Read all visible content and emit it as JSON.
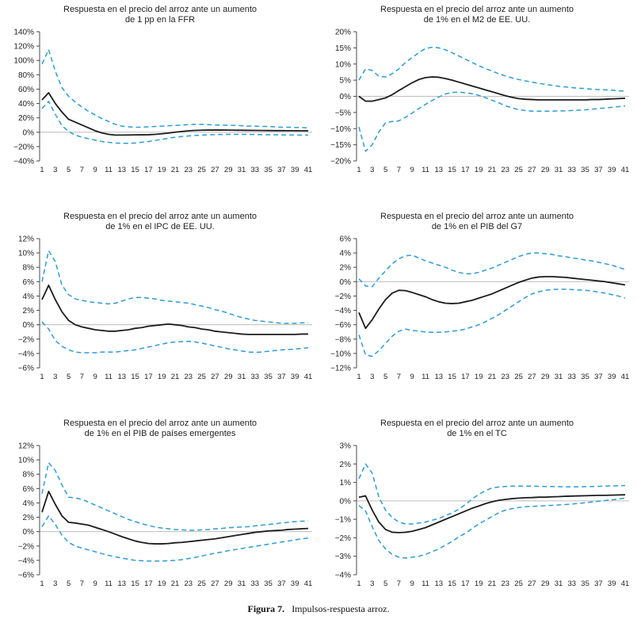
{
  "caption": {
    "label": "Figura 7.",
    "text": "Impulsos-respuesta arroz."
  },
  "style": {
    "band_color": "#2e9bd6",
    "line_color": "#1c1c1c",
    "zero_line_color": "#bdbdbd",
    "axis_color": "#4a4a4a",
    "text_color": "#1f1f1f"
  },
  "x_axis": {
    "min": 1,
    "max": 41,
    "tick_labels": [
      "1",
      "3",
      "5",
      "7",
      "9",
      "11",
      "13",
      "15",
      "17",
      "19",
      "21",
      "23",
      "25",
      "27",
      "29",
      "31",
      "33",
      "35",
      "37",
      "39",
      "41"
    ]
  },
  "chart_data": [
    {
      "type": "line",
      "title_lines": [
        "Respuesta en el precio del arroz ante un aumento",
        "de 1 pp en la FFR"
      ],
      "ylim": [
        -40,
        140
      ],
      "ytick_step": 20,
      "y_tick_labels": [
        "140%",
        "120%",
        "100%",
        "80%",
        "60%",
        "40%",
        "20%",
        "0%",
        "−20%",
        "−40%"
      ],
      "series": [
        {
          "name": "respuesta",
          "style": "solid",
          "values": [
            45,
            55,
            40,
            28,
            18,
            14,
            10,
            6,
            2,
            -1,
            -3,
            -4,
            -4,
            -3.8,
            -3.7,
            -3.6,
            -3.5,
            -3,
            -2.2,
            -1.2,
            0,
            1,
            2,
            2.5,
            2.8,
            3,
            3,
            3,
            2.9,
            2.8,
            2.7,
            2.6,
            2.5,
            2.4,
            2.3,
            2.2,
            2.2,
            2.1,
            2.1,
            2,
            2
          ]
        },
        {
          "name": "banda-superior",
          "style": "dashed",
          "values": [
            95,
            115,
            85,
            62,
            50,
            42,
            35,
            29,
            24,
            19,
            15,
            11,
            8.5,
            7.5,
            7,
            7,
            7.5,
            8,
            8.5,
            9,
            9.5,
            10,
            10.5,
            11,
            11,
            10.5,
            10,
            10,
            9.5,
            9.5,
            9,
            8.5,
            8.5,
            8,
            8,
            7.5,
            7,
            7,
            6.5,
            6.5,
            6
          ]
        },
        {
          "name": "banda-inferior",
          "style": "dashed",
          "values": [
            33,
            43,
            25,
            9,
            1,
            -4,
            -7,
            -9,
            -11,
            -13,
            -14,
            -15,
            -15.5,
            -15.5,
            -15,
            -14,
            -13,
            -11.5,
            -10,
            -8.5,
            -7,
            -6,
            -5.2,
            -4.5,
            -4,
            -3.6,
            -3.3,
            -3.1,
            -3,
            -3,
            -3,
            -3.1,
            -3.2,
            -3.4,
            -3.5,
            -3.6,
            -3.7,
            -3.8,
            -3.9,
            -4,
            -4
          ]
        }
      ]
    },
    {
      "type": "line",
      "title_lines": [
        "Respuesta en el precio del arroz ante un aumento",
        "de 1% en el M2 de EE. UU."
      ],
      "ylim": [
        -20,
        20
      ],
      "ytick_step": 5,
      "y_tick_labels": [
        "20%",
        "15%",
        "10%",
        "5%",
        "0%",
        "−5%",
        "−10%",
        "−15%",
        "−20%"
      ],
      "series": [
        {
          "name": "respuesta",
          "style": "solid",
          "values": [
            0,
            -1.5,
            -1.5,
            -1,
            -0.5,
            0.5,
            1.8,
            3,
            4.2,
            5.2,
            5.8,
            6,
            5.9,
            5.5,
            5,
            4.4,
            3.8,
            3.2,
            2.6,
            2,
            1.4,
            0.8,
            0.2,
            -0.3,
            -0.7,
            -0.9,
            -1,
            -1.1,
            -1.1,
            -1.1,
            -1.1,
            -1.1,
            -1.1,
            -1.1,
            -1.1,
            -1,
            -1,
            -0.9,
            -0.8,
            -0.7,
            -0.6
          ]
        },
        {
          "name": "banda-superior",
          "style": "dashed",
          "values": [
            5,
            8.5,
            8,
            6.2,
            6,
            7,
            8.5,
            10.5,
            12,
            13.5,
            14.8,
            15.2,
            15,
            14.4,
            13.5,
            12.5,
            11.5,
            10.5,
            9.5,
            8.6,
            7.8,
            7,
            6.3,
            5.7,
            5.2,
            4.8,
            4.4,
            4,
            3.7,
            3.4,
            3.1,
            2.9,
            2.7,
            2.5,
            2.4,
            2.2,
            2.1,
            2,
            1.9,
            1.7,
            1.6
          ]
        },
        {
          "name": "banda-inferior",
          "style": "dashed",
          "values": [
            -9.5,
            -17,
            -15,
            -11,
            -8.2,
            -7.8,
            -7.6,
            -6.5,
            -5.2,
            -3.8,
            -2.5,
            -1.3,
            -0.2,
            0.7,
            1.2,
            1.3,
            1.1,
            0.8,
            0.3,
            -0.4,
            -1.2,
            -2,
            -2.9,
            -3.6,
            -4.1,
            -4.4,
            -4.6,
            -4.6,
            -4.6,
            -4.6,
            -4.5,
            -4.5,
            -4.4,
            -4.3,
            -4.2,
            -4,
            -3.8,
            -3.6,
            -3.4,
            -3.2,
            -3
          ]
        }
      ]
    },
    {
      "type": "line",
      "title_lines": [
        "Respuesta en el precio del arroz ante un aumento",
        "de 1% en el IPC de EE. UU."
      ],
      "ylim": [
        -6,
        12
      ],
      "ytick_step": 2,
      "y_tick_labels": [
        "12%",
        "10%",
        "8%",
        "6%",
        "4%",
        "2%",
        "0%",
        "−2%",
        "−4%",
        "−6%"
      ],
      "series": [
        {
          "name": "respuesta",
          "style": "solid",
          "values": [
            3.5,
            5.5,
            3.5,
            1.8,
            0.6,
            0,
            -0.3,
            -0.5,
            -0.7,
            -0.8,
            -0.9,
            -0.9,
            -0.8,
            -0.7,
            -0.5,
            -0.4,
            -0.2,
            -0.1,
            0,
            0.1,
            0,
            -0.1,
            -0.3,
            -0.4,
            -0.6,
            -0.7,
            -0.9,
            -1,
            -1.1,
            -1.2,
            -1.3,
            -1.35,
            -1.35,
            -1.35,
            -1.35,
            -1.35,
            -1.35,
            -1.35,
            -1.35,
            -1.3,
            -1.3
          ]
        },
        {
          "name": "banda-superior",
          "style": "dashed",
          "values": [
            6,
            10.3,
            8.8,
            5.5,
            4.2,
            3.6,
            3.4,
            3.2,
            3.1,
            3,
            2.9,
            3,
            3.3,
            3.6,
            3.8,
            3.8,
            3.7,
            3.6,
            3.4,
            3.3,
            3.2,
            3.1,
            3,
            2.8,
            2.6,
            2.4,
            2.1,
            1.9,
            1.6,
            1.3,
            1,
            0.8,
            0.6,
            0.5,
            0.4,
            0.3,
            0.2,
            0.2,
            0.2,
            0.25,
            0.3
          ]
        },
        {
          "name": "banda-inferior",
          "style": "dashed",
          "values": [
            0.4,
            -0.6,
            -2.2,
            -3,
            -3.5,
            -3.8,
            -3.9,
            -3.9,
            -3.9,
            -3.8,
            -3.8,
            -3.8,
            -3.7,
            -3.6,
            -3.5,
            -3.3,
            -3.1,
            -2.9,
            -2.7,
            -2.5,
            -2.4,
            -2.35,
            -2.3,
            -2.4,
            -2.55,
            -2.75,
            -2.95,
            -3.15,
            -3.35,
            -3.5,
            -3.65,
            -3.8,
            -3.85,
            -3.8,
            -3.7,
            -3.6,
            -3.5,
            -3.45,
            -3.4,
            -3.3,
            -3.2
          ]
        }
      ]
    },
    {
      "type": "line",
      "title_lines": [
        "Respuesta en el precio del arroz ante un aumento",
        "de 1% en el PIB del G7"
      ],
      "ylim": [
        -12,
        6
      ],
      "ytick_step": 2,
      "y_tick_labels": [
        "6%",
        "4%",
        "2%",
        "0%",
        "−2%",
        "−4%",
        "−6%",
        "−8%",
        "−10%",
        "−12%"
      ],
      "series": [
        {
          "name": "respuesta",
          "style": "solid",
          "values": [
            -4.3,
            -6.5,
            -5.3,
            -3.8,
            -2.5,
            -1.6,
            -1.2,
            -1.25,
            -1.5,
            -1.8,
            -2.1,
            -2.5,
            -2.8,
            -3,
            -3.05,
            -3,
            -2.8,
            -2.6,
            -2.3,
            -2,
            -1.7,
            -1.3,
            -0.9,
            -0.5,
            -0.1,
            0.2,
            0.5,
            0.65,
            0.7,
            0.7,
            0.65,
            0.6,
            0.5,
            0.4,
            0.3,
            0.2,
            0.1,
            0,
            -0.15,
            -0.3,
            -0.45
          ]
        },
        {
          "name": "banda-superior",
          "style": "dashed",
          "values": [
            0.4,
            -0.6,
            -0.7,
            0.5,
            1.5,
            2.5,
            3.2,
            3.6,
            3.7,
            3.3,
            2.9,
            2.6,
            2.3,
            2,
            1.6,
            1.3,
            1.1,
            1.1,
            1.3,
            1.6,
            1.9,
            2.3,
            2.7,
            3.1,
            3.5,
            3.8,
            4,
            4,
            3.9,
            3.8,
            3.6,
            3.5,
            3.3,
            3.2,
            3,
            2.9,
            2.7,
            2.5,
            2.3,
            2,
            1.7
          ]
        },
        {
          "name": "banda-inferior",
          "style": "dashed",
          "values": [
            -7.4,
            -10.2,
            -10.4,
            -9.6,
            -8.6,
            -7.6,
            -6.9,
            -6.6,
            -6.8,
            -6.9,
            -7,
            -7.05,
            -7.05,
            -7,
            -6.9,
            -6.8,
            -6.6,
            -6.3,
            -6,
            -5.6,
            -5.1,
            -4.6,
            -4,
            -3.4,
            -2.8,
            -2.2,
            -1.7,
            -1.4,
            -1.2,
            -1.1,
            -1.05,
            -1.05,
            -1.1,
            -1.15,
            -1.2,
            -1.3,
            -1.45,
            -1.6,
            -1.8,
            -2,
            -2.3
          ]
        }
      ]
    },
    {
      "type": "line",
      "title_lines": [
        "Respuesta en el precio del arroz ante un aumento",
        "de 1% en el PIB de países emergentes"
      ],
      "ylim": [
        -6,
        12
      ],
      "ytick_step": 2,
      "y_tick_labels": [
        "12%",
        "10%",
        "8%",
        "6%",
        "4%",
        "2%",
        "0%",
        "−2%",
        "−4%",
        "−6%"
      ],
      "series": [
        {
          "name": "respuesta",
          "style": "solid",
          "values": [
            2.7,
            5.6,
            3.8,
            2.2,
            1.3,
            1.2,
            1.05,
            0.9,
            0.6,
            0.3,
            0,
            -0.35,
            -0.7,
            -1,
            -1.3,
            -1.5,
            -1.65,
            -1.7,
            -1.7,
            -1.65,
            -1.55,
            -1.5,
            -1.4,
            -1.3,
            -1.2,
            -1.1,
            -1,
            -0.85,
            -0.7,
            -0.55,
            -0.4,
            -0.25,
            -0.1,
            0,
            0.1,
            0.15,
            0.2,
            0.3,
            0.35,
            0.4,
            0.45
          ]
        },
        {
          "name": "banda-superior",
          "style": "dashed",
          "values": [
            5.3,
            9.6,
            8.5,
            6.5,
            4.8,
            4.7,
            4.5,
            4.1,
            3.7,
            3.3,
            2.9,
            2.5,
            2.1,
            1.7,
            1.4,
            1.1,
            0.85,
            0.65,
            0.5,
            0.4,
            0.3,
            0.25,
            0.2,
            0.2,
            0.25,
            0.3,
            0.4,
            0.45,
            0.55,
            0.6,
            0.65,
            0.7,
            0.8,
            0.9,
            1,
            1.1,
            1.2,
            1.3,
            1.4,
            1.45,
            1.5
          ]
        },
        {
          "name": "banda-inferior",
          "style": "dashed",
          "values": [
            0.7,
            2.2,
            1,
            -0.5,
            -1.5,
            -2,
            -2.3,
            -2.55,
            -2.8,
            -3.05,
            -3.3,
            -3.5,
            -3.7,
            -3.85,
            -4,
            -4.05,
            -4.1,
            -4.1,
            -4.1,
            -4.05,
            -4,
            -3.9,
            -3.75,
            -3.6,
            -3.4,
            -3.2,
            -3,
            -2.85,
            -2.65,
            -2.5,
            -2.35,
            -2.2,
            -2.05,
            -1.9,
            -1.75,
            -1.6,
            -1.45,
            -1.3,
            -1.15,
            -1,
            -0.9
          ]
        }
      ]
    },
    {
      "type": "line",
      "title_lines": [
        "Respuesta en el precio del arroz ante un aumento",
        "de 1% en el TC"
      ],
      "ylim": [
        -4,
        3
      ],
      "ytick_step": 1,
      "y_tick_labels": [
        "3%",
        "2%",
        "1%",
        "0%",
        "−1%",
        "−2%",
        "−3%",
        "−4%"
      ],
      "series": [
        {
          "name": "respuesta",
          "style": "solid",
          "values": [
            0.2,
            0.27,
            -0.5,
            -1.15,
            -1.55,
            -1.7,
            -1.72,
            -1.7,
            -1.65,
            -1.55,
            -1.45,
            -1.3,
            -1.15,
            -1,
            -0.85,
            -0.7,
            -0.55,
            -0.4,
            -0.28,
            -0.15,
            -0.05,
            0.03,
            0.08,
            0.12,
            0.15,
            0.17,
            0.18,
            0.2,
            0.2,
            0.22,
            0.23,
            0.25,
            0.26,
            0.27,
            0.28,
            0.29,
            0.3,
            0.3,
            0.31,
            0.32,
            0.33
          ]
        },
        {
          "name": "banda-superior",
          "style": "dashed",
          "values": [
            1.2,
            2,
            1.5,
            0.2,
            -0.5,
            -0.9,
            -1.15,
            -1.25,
            -1.25,
            -1.2,
            -1.15,
            -1.05,
            -0.95,
            -0.8,
            -0.65,
            -0.45,
            -0.2,
            0.1,
            0.35,
            0.55,
            0.7,
            0.75,
            0.78,
            0.8,
            0.8,
            0.8,
            0.8,
            0.79,
            0.78,
            0.78,
            0.77,
            0.76,
            0.76,
            0.76,
            0.77,
            0.78,
            0.79,
            0.8,
            0.81,
            0.82,
            0.83
          ]
        },
        {
          "name": "banda-inferior",
          "style": "dashed",
          "values": [
            -0.25,
            -0.55,
            -1.4,
            -2.15,
            -2.6,
            -2.9,
            -3.05,
            -3.1,
            -3.05,
            -3,
            -2.9,
            -2.75,
            -2.6,
            -2.4,
            -2.2,
            -1.95,
            -1.75,
            -1.5,
            -1.25,
            -1.05,
            -0.85,
            -0.65,
            -0.5,
            -0.42,
            -0.36,
            -0.32,
            -0.3,
            -0.28,
            -0.26,
            -0.24,
            -0.22,
            -0.2,
            -0.17,
            -0.14,
            -0.1,
            -0.06,
            -0.02,
            0.02,
            0.06,
            0.1,
            0.15
          ]
        }
      ]
    }
  ]
}
